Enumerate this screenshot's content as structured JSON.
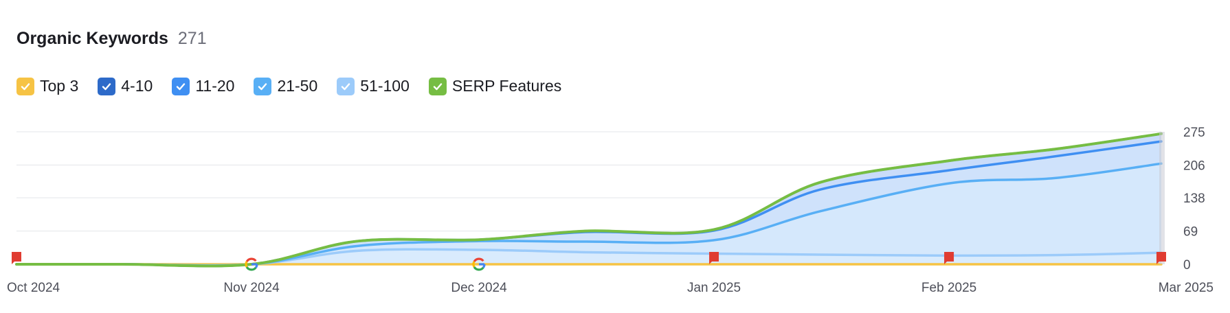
{
  "header": {
    "title": "Organic Keywords",
    "count": "271"
  },
  "legend": [
    {
      "label": "Top 3",
      "color": "#f6c344",
      "checked": true
    },
    {
      "label": "4-10",
      "color": "#2d6ac9",
      "checked": true
    },
    {
      "label": "11-20",
      "color": "#3f8ff2",
      "checked": true
    },
    {
      "label": "21-50",
      "color": "#58aff5",
      "checked": true
    },
    {
      "label": "51-100",
      "color": "#9ccbfa",
      "checked": true
    },
    {
      "label": "SERP Features",
      "color": "#76bd43",
      "checked": true
    }
  ],
  "chart_data": {
    "type": "area",
    "x": [
      "2024-10-01",
      "2024-10-15",
      "2024-11-01",
      "2024-11-15",
      "2024-12-01",
      "2024-12-15",
      "2025-01-01",
      "2025-01-15",
      "2025-02-01",
      "2025-02-15",
      "2025-03-01"
    ],
    "xticks": [
      "Oct 2024",
      "Nov 2024",
      "Dec 2024",
      "Jan 2025",
      "Feb 2025",
      "Mar 2025"
    ],
    "yticks": [
      "0",
      "69",
      "138",
      "206",
      "275"
    ],
    "ylim": [
      0,
      275
    ],
    "stacked": true,
    "grid": true,
    "series": [
      {
        "name": "Top 3",
        "color": "#f6c344",
        "values": [
          0,
          0,
          0,
          0,
          0,
          0,
          0,
          0,
          0,
          0,
          0
        ]
      },
      {
        "name": "51-100",
        "color": "#9ccbfa",
        "values": [
          0,
          0,
          0,
          28,
          30,
          25,
          22,
          20,
          18,
          19,
          24
        ]
      },
      {
        "name": "21-50",
        "color": "#58aff5",
        "values": [
          0,
          0,
          0,
          10,
          18,
          22,
          28,
          90,
          150,
          160,
          185
        ]
      },
      {
        "name": "11-20",
        "color": "#3f8ff2",
        "values": [
          0,
          0,
          0,
          10,
          3,
          20,
          20,
          45,
          27,
          45,
          46
        ]
      },
      {
        "name": "4-10",
        "color": "#2d6ac9",
        "values": [
          0,
          0,
          0,
          0,
          0,
          2,
          2,
          15,
          20,
          15,
          16
        ]
      },
      {
        "name": "SERP Features",
        "color": "#76bd43",
        "values": [
          0,
          0,
          0,
          0,
          0,
          0,
          0,
          0,
          0,
          0,
          0
        ]
      }
    ],
    "markers": [
      {
        "type": "flag",
        "date": "2024-10-01",
        "color": "#e03c31"
      },
      {
        "type": "google",
        "date": "2024-11-01"
      },
      {
        "type": "google",
        "date": "2024-12-01"
      },
      {
        "type": "flag",
        "date": "2025-01-01",
        "color": "#e03c31"
      },
      {
        "type": "flag",
        "date": "2025-02-01",
        "color": "#e03c31"
      },
      {
        "type": "flag",
        "date": "2025-03-01",
        "color": "#e03c31"
      }
    ]
  }
}
